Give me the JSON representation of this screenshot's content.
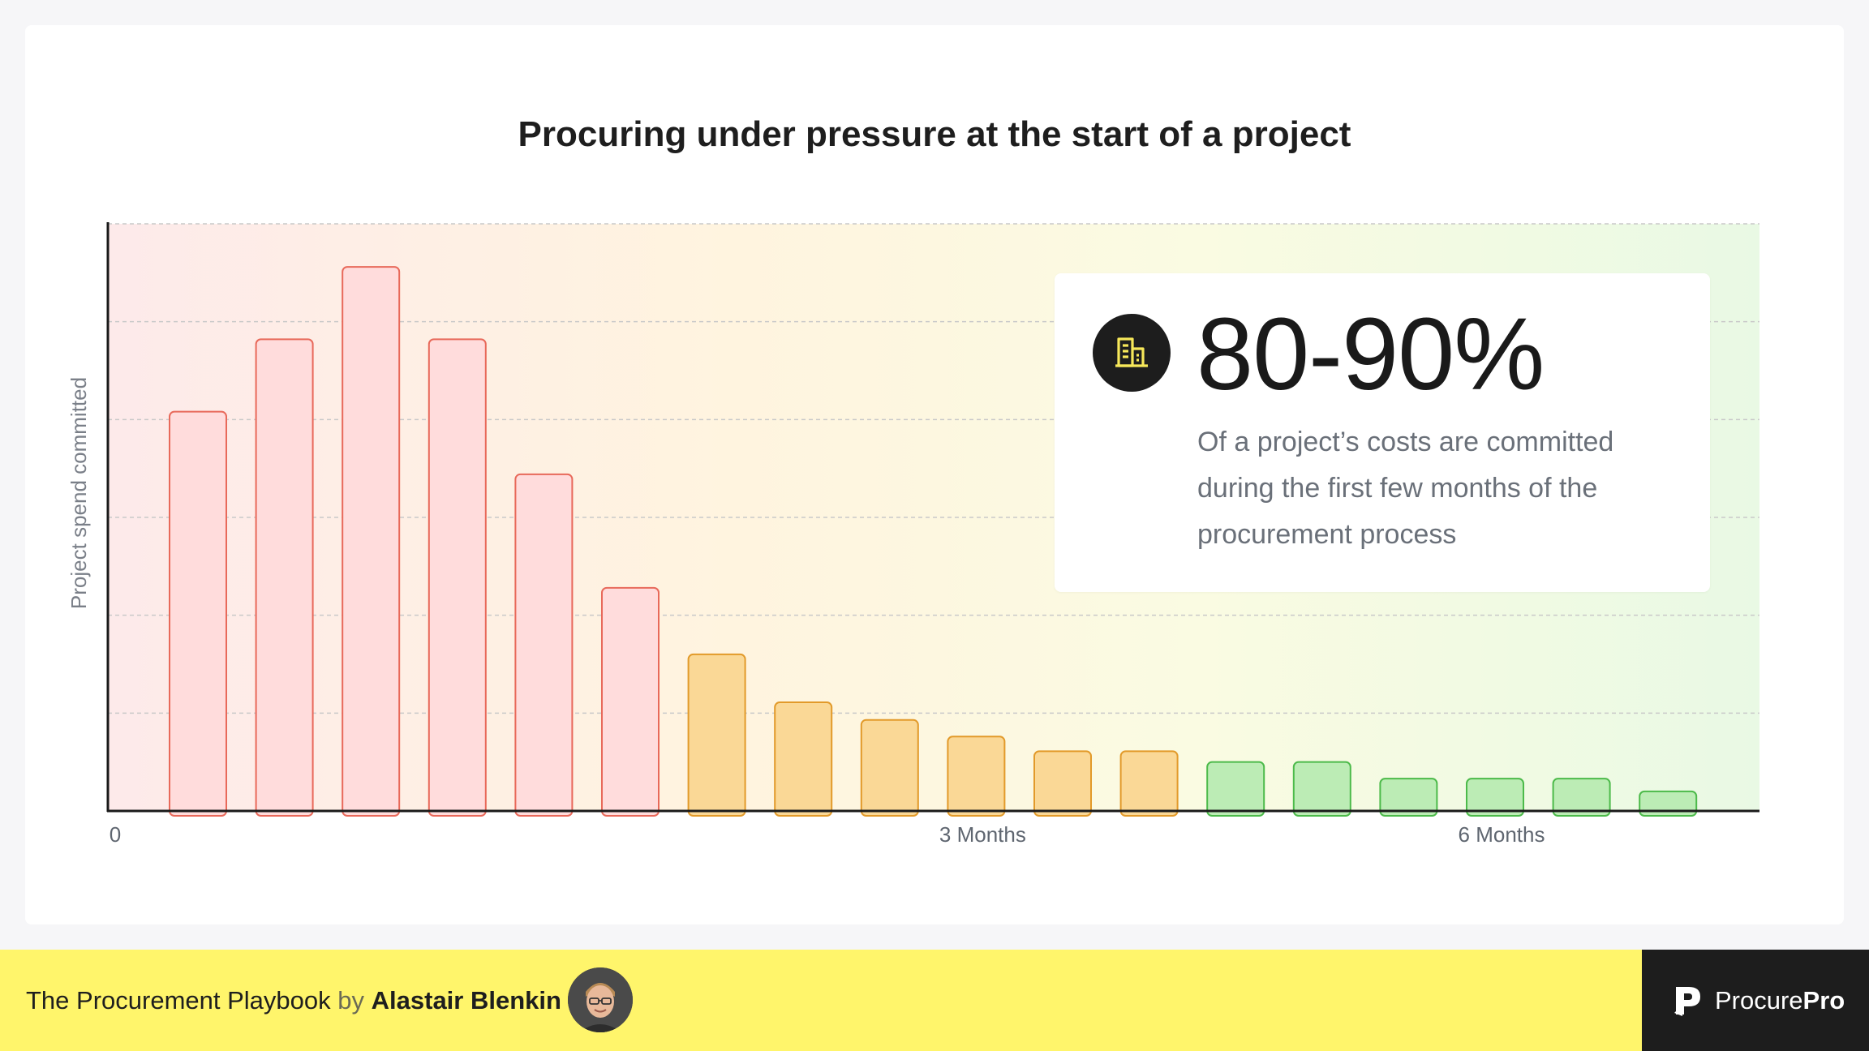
{
  "chart_data": {
    "type": "bar",
    "title": "Procuring under pressure at the start of a project",
    "ylabel": "Project spend committed",
    "xlabel": "",
    "x_tick_labels": [
      {
        "label": "0",
        "category_index": 0
      },
      {
        "label": "3 Months",
        "category_index": 9
      },
      {
        "label": "6 Months",
        "category_index": 15
      }
    ],
    "ylim": [
      0,
      6
    ],
    "grid": true,
    "values": [
      4.08,
      4.82,
      5.56,
      4.82,
      3.44,
      2.28,
      1.6,
      1.11,
      0.93,
      0.76,
      0.61,
      0.61,
      0.5,
      0.5,
      0.33,
      0.33,
      0.33,
      0.2
    ],
    "bar_colors": [
      "red",
      "red",
      "red",
      "red",
      "red",
      "red",
      "orange",
      "orange",
      "orange",
      "orange",
      "orange",
      "orange",
      "green",
      "green",
      "green",
      "green",
      "green",
      "green"
    ],
    "palette": {
      "red": {
        "fill": "#ffdcdc",
        "stroke": "#e8695a"
      },
      "orange": {
        "fill": "#fad896",
        "stroke": "#e29a2a"
      },
      "green": {
        "fill": "#bcecb5",
        "stroke": "#4cba4a"
      }
    },
    "background_gradient": [
      "#fdeaea",
      "#fff4df",
      "#fafbe2",
      "#e9f9e4"
    ]
  },
  "stat": {
    "icon": "building-icon",
    "value": "80-90%",
    "description": "Of a project’s costs are committed during the first few months of the procurement process"
  },
  "footer": {
    "book": "The Procurement Playbook",
    "by": "by",
    "author": "Alastair Blenkin",
    "brand_regular": "Procure",
    "brand_bold": "Pro"
  }
}
